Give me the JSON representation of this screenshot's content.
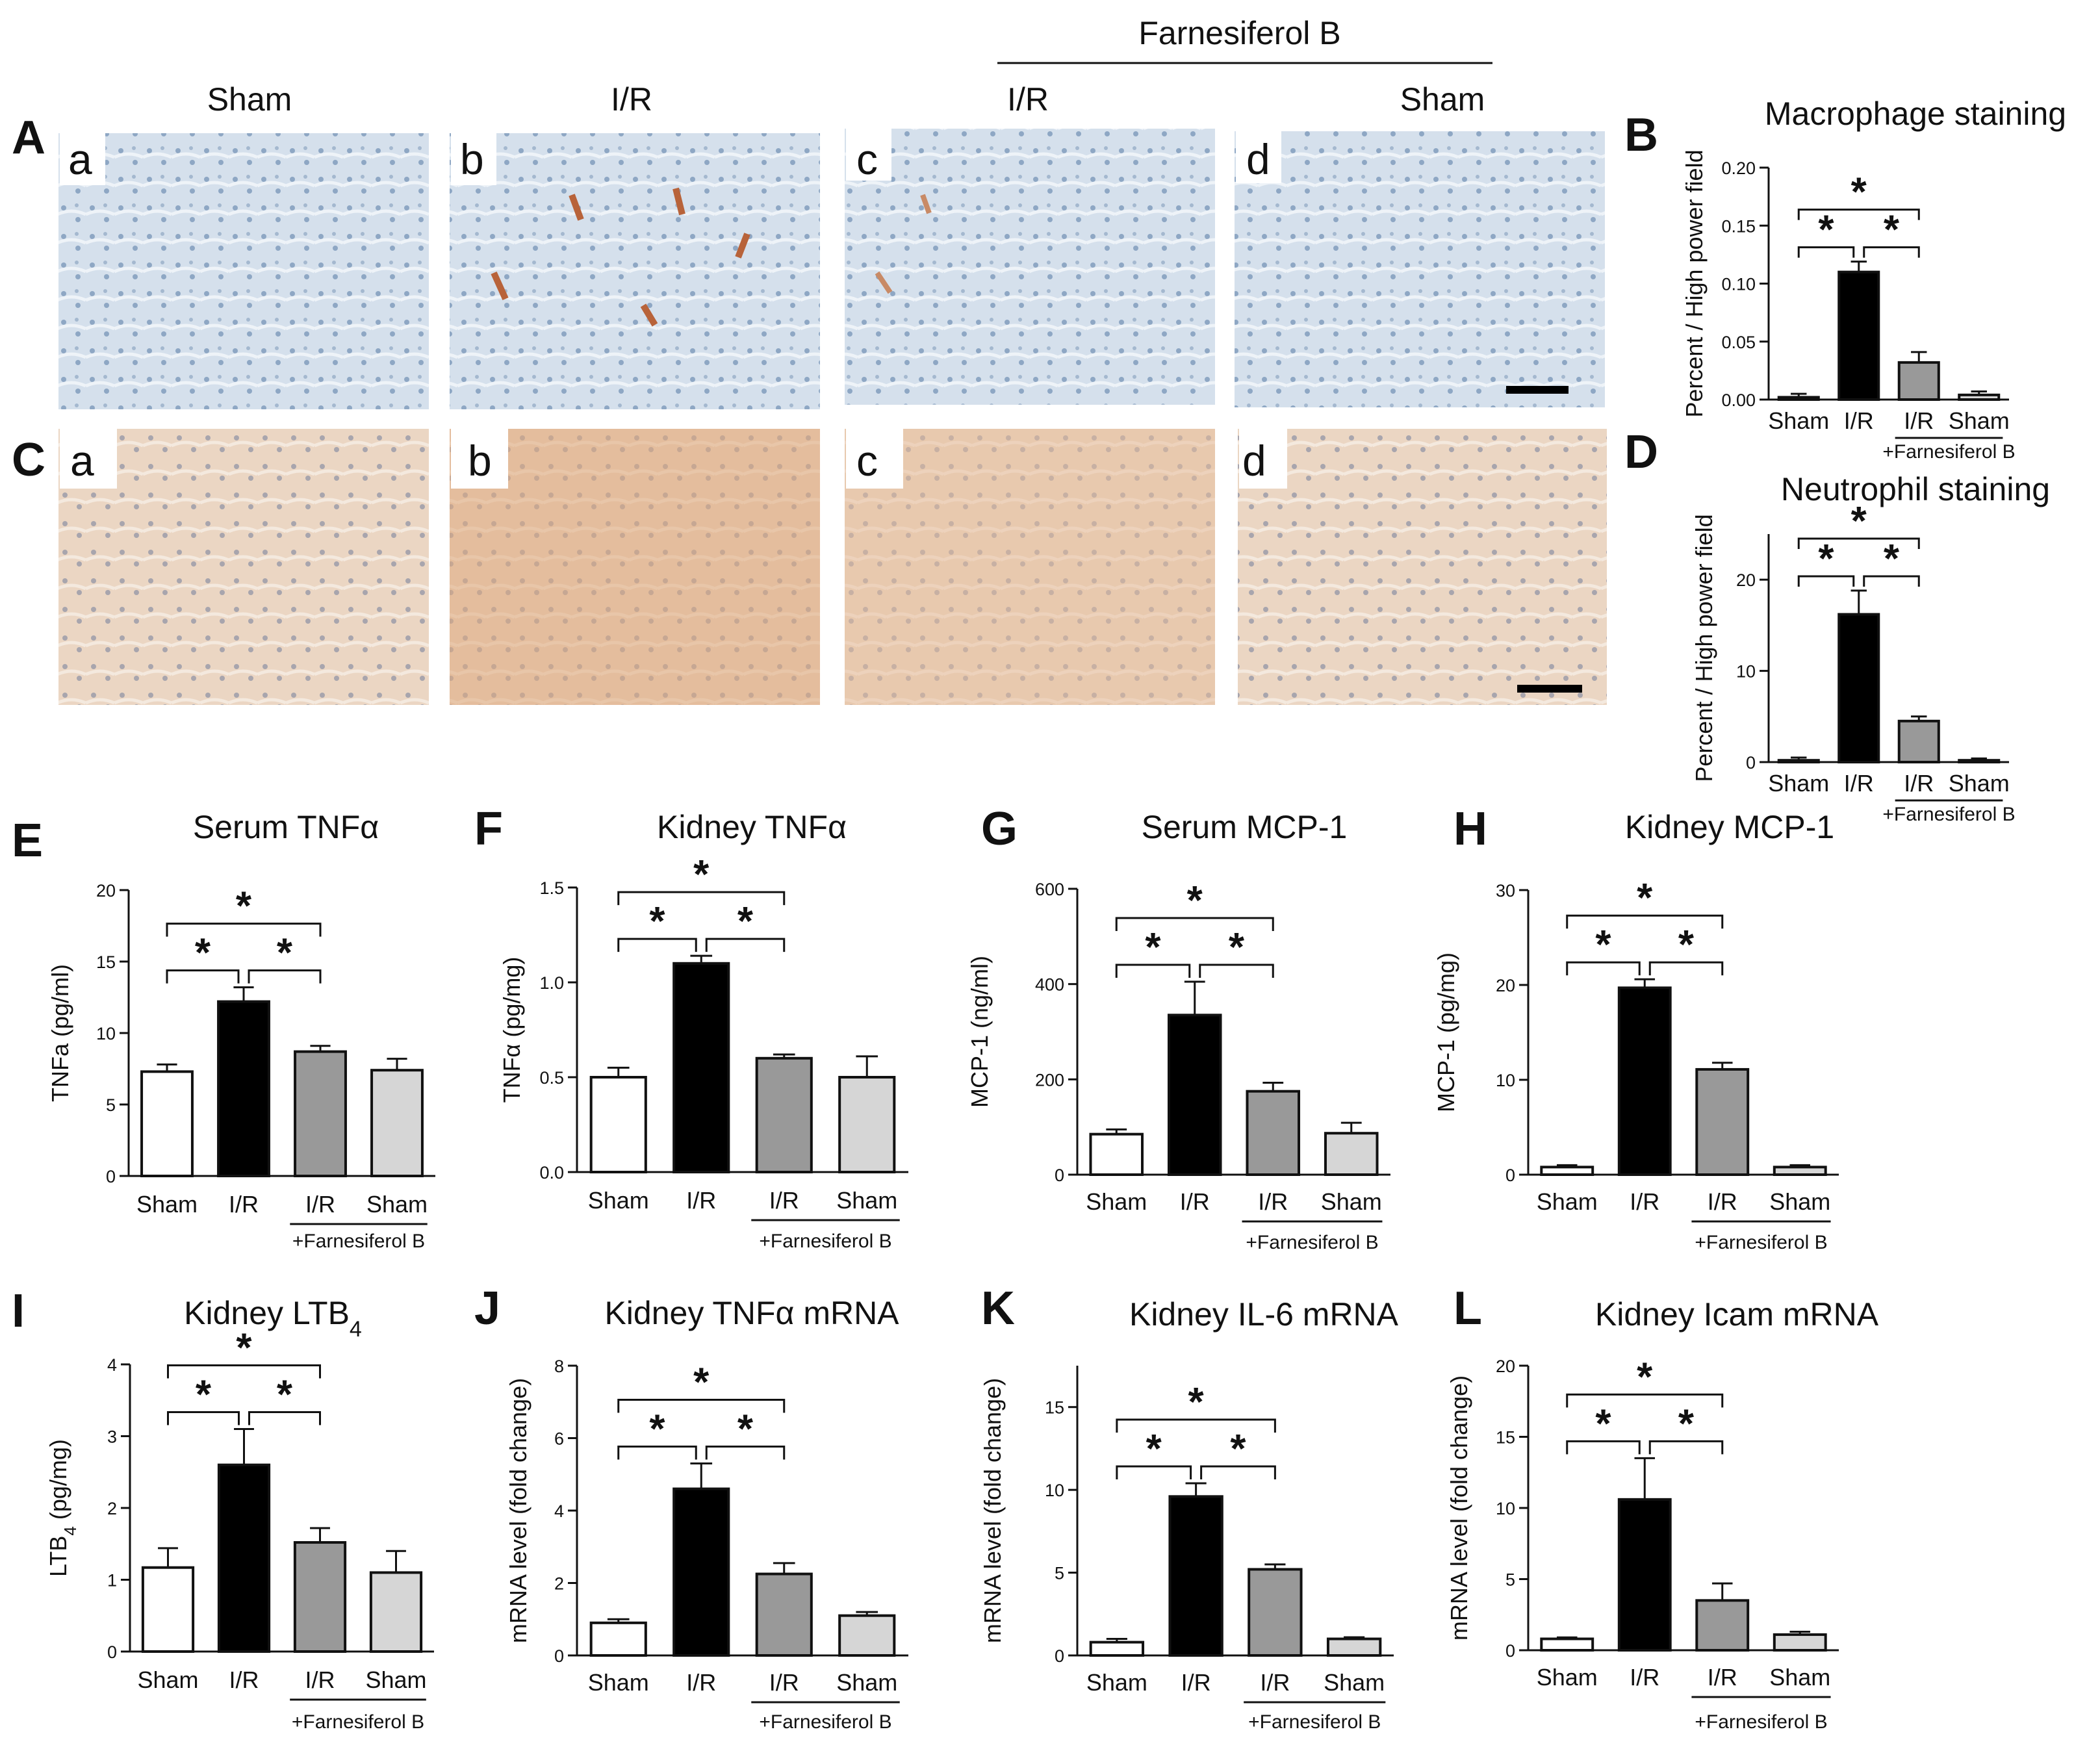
{
  "header": {
    "drug_group_label": "Farnesiferol B",
    "group_labels": [
      "Sham",
      "I/R",
      "I/R",
      "Sham"
    ]
  },
  "micrographs": {
    "row_A": {
      "panel": "A",
      "sublabels": [
        "a",
        "b",
        "c",
        "d"
      ]
    },
    "row_C": {
      "panel": "C",
      "sublabels": [
        "a",
        "b",
        "c",
        "d"
      ]
    }
  },
  "categories": [
    "Sham",
    "I/R",
    "I/R",
    "Sham"
  ],
  "treatment_label": "+Farnesiferol B",
  "significance_mark": "*",
  "colors": {
    "sham": "#ffffff",
    "ir": "#000000",
    "ir_farnesiferol": "#999999",
    "sham_farnesiferol": "#d6d6d6",
    "staining_blue": "#c9d8e8",
    "staining_brown": "#e6c4a6"
  },
  "chart_data": [
    {
      "panel": "B",
      "type": "bar",
      "title": "Macrophage staining",
      "ylabel": "Percent / High power field",
      "ylim": [
        0,
        0.2
      ],
      "yticks": [
        "0.00",
        "0.05",
        "0.10",
        "0.15",
        "0.20"
      ],
      "categories": [
        "Sham",
        "I/R",
        "I/R",
        "Sham"
      ],
      "values": [
        0.002,
        0.11,
        0.032,
        0.004
      ],
      "errors": [
        0.003,
        0.009,
        0.009,
        0.003
      ]
    },
    {
      "panel": "D",
      "type": "bar",
      "title": "Neutrophil staining",
      "ylabel": "Percent / High power field",
      "ylim": [
        0,
        25
      ],
      "yticks": [
        "0",
        "10",
        "20"
      ],
      "categories": [
        "Sham",
        "I/R",
        "I/R",
        "Sham"
      ],
      "values": [
        0.2,
        16.2,
        4.5,
        0.2
      ],
      "errors": [
        0.3,
        2.6,
        0.5,
        0.2
      ]
    },
    {
      "panel": "E",
      "type": "bar",
      "title": "Serum TNFα",
      "ylabel": "TNFa (pg/ml)",
      "ylim": [
        0,
        20
      ],
      "yticks": [
        "0",
        "5",
        "10",
        "15",
        "20"
      ],
      "categories": [
        "Sham",
        "I/R",
        "I/R",
        "Sham"
      ],
      "values": [
        7.3,
        12.2,
        8.7,
        7.4
      ],
      "errors": [
        0.5,
        1.0,
        0.4,
        0.8
      ]
    },
    {
      "panel": "F",
      "type": "bar",
      "title": "Kidney TNFα",
      "ylabel": "TNFα (pg/mg)",
      "ylim": [
        0,
        1.5
      ],
      "yticks": [
        "0.0",
        "0.5",
        "1.0",
        "1.5"
      ],
      "categories": [
        "Sham",
        "I/R",
        "I/R",
        "Sham"
      ],
      "values": [
        0.5,
        1.1,
        0.6,
        0.5
      ],
      "errors": [
        0.05,
        0.04,
        0.02,
        0.11
      ]
    },
    {
      "panel": "G",
      "type": "bar",
      "title": "Serum MCP-1",
      "ylabel": "MCP-1 (ng/ml)",
      "ylim": [
        0,
        600
      ],
      "yticks": [
        "0",
        "200",
        "400",
        "600"
      ],
      "categories": [
        "Sham",
        "I/R",
        "I/R",
        "Sham"
      ],
      "values": [
        85,
        335,
        175,
        87
      ],
      "errors": [
        10,
        70,
        18,
        22
      ]
    },
    {
      "panel": "H",
      "type": "bar",
      "title": "Kidney MCP-1",
      "ylabel": "MCP-1 (pg/mg)",
      "ylim": [
        0,
        30
      ],
      "yticks": [
        "0",
        "10",
        "20",
        "30"
      ],
      "categories": [
        "Sham",
        "I/R",
        "I/R",
        "Sham"
      ],
      "values": [
        0.8,
        19.7,
        11.1,
        0.8
      ],
      "errors": [
        0.2,
        0.9,
        0.7,
        0.2
      ]
    },
    {
      "panel": "I",
      "type": "bar",
      "title": "Kidney LTB",
      "title_sub": "4",
      "ylabel": "LTB",
      "ylabel_sub": "4",
      "ylabel_rest": " (pg/mg)",
      "ylim": [
        0,
        4
      ],
      "yticks": [
        "0",
        "1",
        "2",
        "3",
        "4"
      ],
      "categories": [
        "Sham",
        "I/R",
        "I/R",
        "Sham"
      ],
      "values": [
        1.17,
        2.6,
        1.52,
        1.1
      ],
      "errors": [
        0.27,
        0.5,
        0.2,
        0.3
      ]
    },
    {
      "panel": "J",
      "type": "bar",
      "title": "Kidney TNFα  mRNA",
      "ylabel": "mRNA level (fold change)",
      "ylim": [
        0,
        8
      ],
      "yticks": [
        "0",
        "2",
        "4",
        "6",
        "8"
      ],
      "categories": [
        "Sham",
        "I/R",
        "I/R",
        "Sham"
      ],
      "values": [
        0.9,
        4.6,
        2.25,
        1.1
      ],
      "errors": [
        0.1,
        0.7,
        0.3,
        0.1
      ]
    },
    {
      "panel": "K",
      "type": "bar",
      "title": "Kidney IL-6  mRNA",
      "ylabel": "mRNA level (fold change)",
      "ylim": [
        0,
        17.5
      ],
      "yticks": [
        "0",
        "5",
        "10",
        "15"
      ],
      "categories": [
        "Sham",
        "I/R",
        "I/R",
        "Sham"
      ],
      "values": [
        0.8,
        9.6,
        5.2,
        1.0
      ],
      "errors": [
        0.2,
        0.8,
        0.3,
        0.1
      ]
    },
    {
      "panel": "L",
      "type": "bar",
      "title": "Kidney Icam mRNA",
      "ylabel": "mRNA level (fold change)",
      "ylim": [
        0,
        20
      ],
      "yticks": [
        "0",
        "5",
        "10",
        "15",
        "20"
      ],
      "categories": [
        "Sham",
        "I/R",
        "I/R",
        "Sham"
      ],
      "values": [
        0.8,
        10.6,
        3.5,
        1.1
      ],
      "errors": [
        0.1,
        2.9,
        1.2,
        0.2
      ]
    }
  ]
}
